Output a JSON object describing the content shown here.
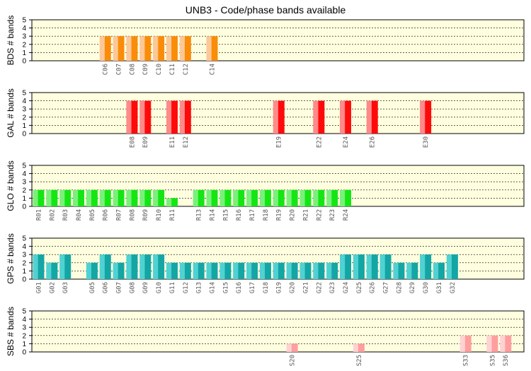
{
  "title": "UNB3 - Code/phase bands available",
  "chart_data": [
    {
      "type": "bar",
      "ylabel": "BDS # bands",
      "ylim": [
        0,
        5
      ],
      "yticks": [
        0,
        1,
        2,
        3,
        4,
        5
      ],
      "colors": {
        "light": "#fcc898",
        "dark": "#fa8c08"
      },
      "categories": [
        "C06",
        "C07",
        "C08",
        "C09",
        "C10",
        "C11",
        "C12",
        "C14"
      ],
      "values": [
        3,
        3,
        3,
        3,
        3,
        3,
        3,
        3
      ]
    },
    {
      "type": "bar",
      "ylabel": "GAL # bands",
      "ylim": [
        0,
        5
      ],
      "yticks": [
        0,
        1,
        2,
        3,
        4,
        5
      ],
      "colors": {
        "light": "#ff8a8a",
        "dark": "#ff0a0a"
      },
      "categories": [
        "E08",
        "E09",
        "E11",
        "E12",
        "E19",
        "E22",
        "E24",
        "E26",
        "E30"
      ],
      "values": [
        4,
        4,
        4,
        4,
        4,
        4,
        4,
        4,
        4
      ]
    },
    {
      "type": "bar",
      "ylabel": "GLO # bands",
      "ylim": [
        0,
        5
      ],
      "yticks": [
        0,
        1,
        2,
        3,
        4,
        5
      ],
      "colors": {
        "light": "#7af07a",
        "dark": "#14e614"
      },
      "categories": [
        "R01",
        "R02",
        "R03",
        "R04",
        "R05",
        "R06",
        "R07",
        "R08",
        "R09",
        "R10",
        "R11",
        "R13",
        "R14",
        "R15",
        "R16",
        "R17",
        "R18",
        "R19",
        "R20",
        "R21",
        "R22",
        "R23",
        "R24"
      ],
      "values": [
        2,
        2,
        2,
        2,
        2,
        2,
        2,
        2,
        2,
        2,
        1,
        2,
        2,
        2,
        2,
        2,
        2,
        2,
        2,
        2,
        2,
        2,
        2
      ]
    },
    {
      "type": "bar",
      "ylabel": "GPS # bands",
      "ylim": [
        0,
        5
      ],
      "yticks": [
        0,
        1,
        2,
        3,
        4,
        5
      ],
      "colors": {
        "light": "#50d2d2",
        "dark": "#14a5a5"
      },
      "categories": [
        "G01",
        "G02",
        "G03",
        "G05",
        "G06",
        "G07",
        "G08",
        "G09",
        "G10",
        "G11",
        "G12",
        "G13",
        "G14",
        "G15",
        "G16",
        "G17",
        "G18",
        "G19",
        "G20",
        "G21",
        "G22",
        "G23",
        "G24",
        "G25",
        "G26",
        "G27",
        "G28",
        "G29",
        "G30",
        "G31",
        "G32"
      ],
      "values": [
        3,
        2,
        3,
        2,
        3,
        2,
        3,
        3,
        3,
        2,
        2,
        2,
        2,
        2,
        2,
        2,
        2,
        2,
        2,
        2,
        2,
        2,
        3,
        3,
        3,
        3,
        2,
        2,
        3,
        2,
        3
      ]
    },
    {
      "type": "bar",
      "ylabel": "SBS # bands",
      "ylim": [
        0,
        5
      ],
      "yticks": [
        0,
        1,
        2,
        3,
        4,
        5
      ],
      "colors": {
        "light": "#ffd2d2",
        "dark": "#ff9e9e"
      },
      "categories": [
        "S20",
        "S25",
        "S33",
        "S35",
        "S36"
      ],
      "values": [
        1,
        1,
        2,
        2,
        2
      ]
    }
  ]
}
